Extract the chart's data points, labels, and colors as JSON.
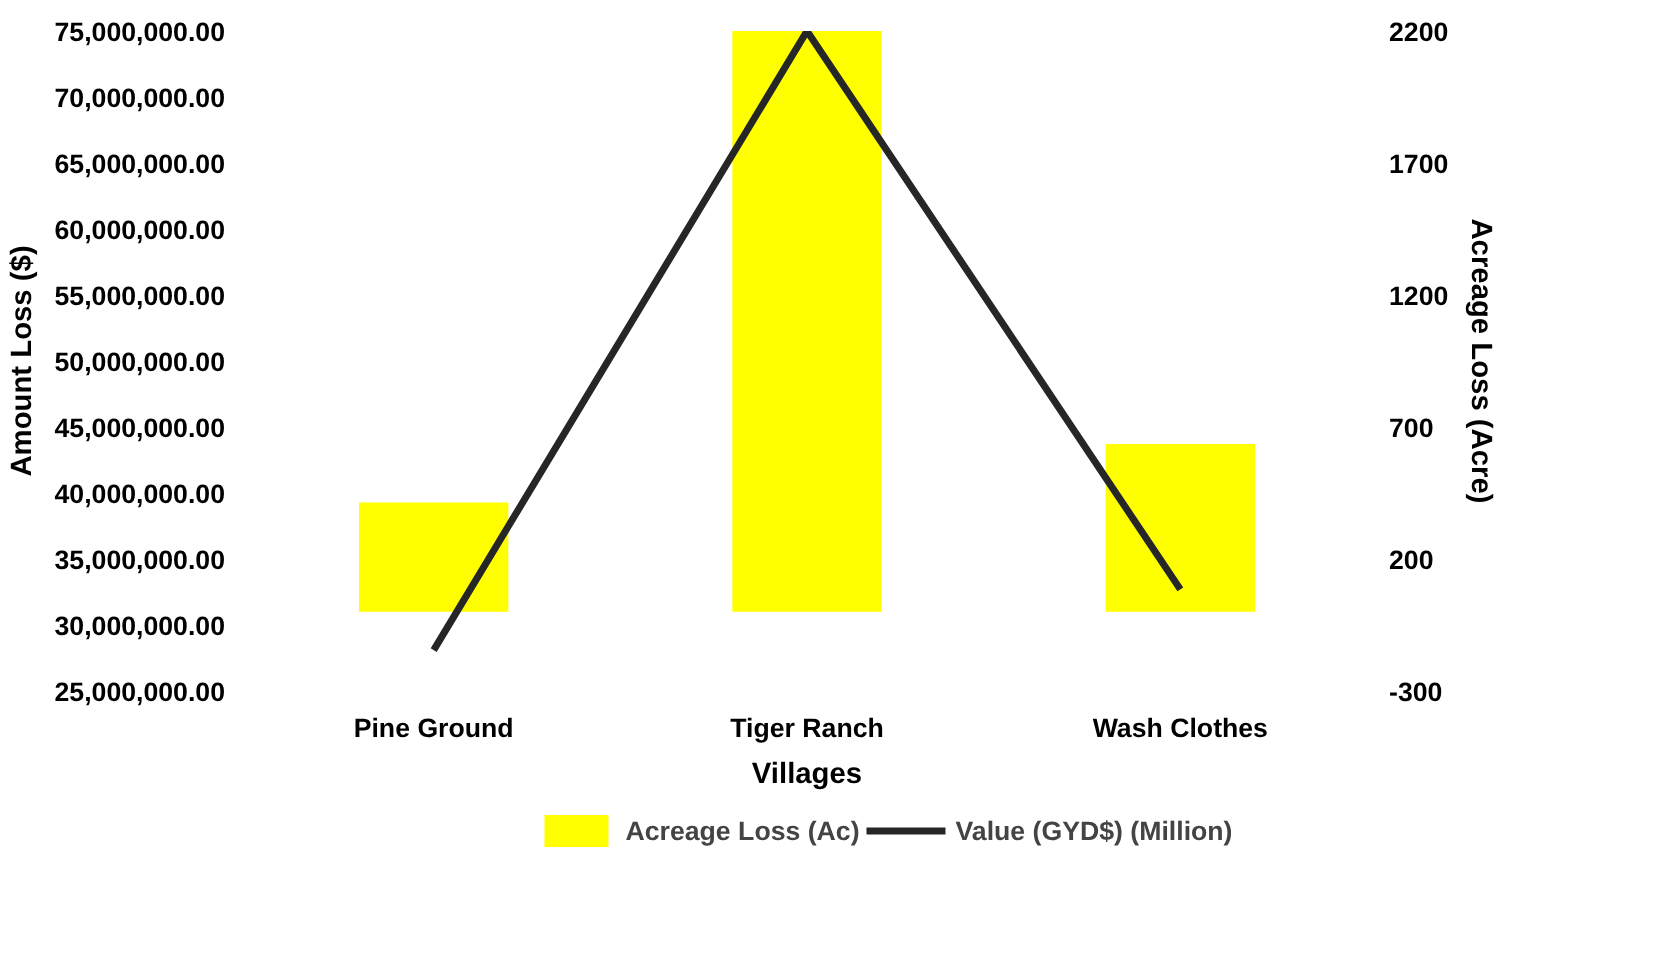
{
  "chart_data": {
    "type": "bar",
    "categories": [
      "Pine Ground",
      "Tiger Ranch",
      "Wash Clothes"
    ],
    "xlabel": "Villages",
    "ylabel": "Amount Loss ($)",
    "y2label": "Acreage Loss (Acre)",
    "series": [
      {
        "name": "Acreage Loss (Ac)",
        "type": "bar",
        "axis": "y2",
        "color": "#ffff00",
        "values": [
          414,
          2200,
          636
        ]
      },
      {
        "name": "Value (GYD$) (Million)",
        "type": "line",
        "color": "#262626",
        "values": [
          28100000,
          75000000,
          32700000
        ]
      }
    ],
    "ylim": [
      25000000,
      75000000
    ],
    "yticks": [
      {
        "value": 25000000,
        "label": "25,000,000.00"
      },
      {
        "value": 30000000,
        "label": "30,000,000.00"
      },
      {
        "value": 35000000,
        "label": "35,000,000.00"
      },
      {
        "value": 40000000,
        "label": "40,000,000.00"
      },
      {
        "value": 45000000,
        "label": "45,000,000.00"
      },
      {
        "value": 50000000,
        "label": "50,000,000.00"
      },
      {
        "value": 55000000,
        "label": "55,000,000.00"
      },
      {
        "value": 60000000,
        "label": "60,000,000.00"
      },
      {
        "value": 65000000,
        "label": "65,000,000.00"
      },
      {
        "value": 70000000,
        "label": "70,000,000.00"
      },
      {
        "value": 75000000,
        "label": "75,000,000.00"
      }
    ],
    "y2lim": [
      -300,
      2200
    ],
    "y2ticks": [
      -300,
      200,
      700,
      1200,
      1700,
      2200
    ],
    "grid": false,
    "legend": "bottom",
    "marker": "none",
    "line_style": "solid"
  }
}
